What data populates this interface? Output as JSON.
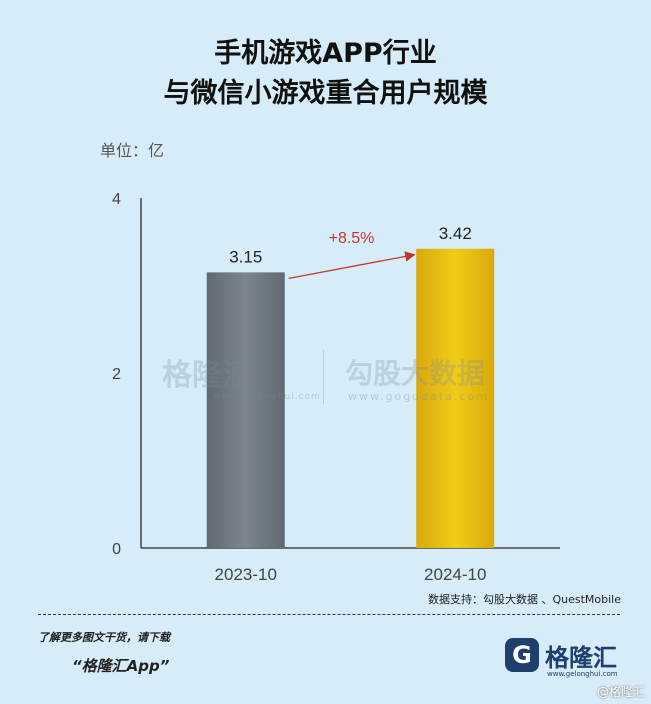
{
  "title_line1": "手机游戏APP行业",
  "title_line2": "与微信小游戏重合用户规模",
  "unit_label": "单位：亿",
  "watermark": {
    "brand": "格隆汇",
    "brand_url": "www.gelonghui.com",
    "partner": "勾股大数据",
    "partner_url": "www.gogudata.com"
  },
  "source": "数据支持：勾股大数据 、QuestMobile",
  "promo_line1": "了解更多图文干货，请下载",
  "promo_line2": "“格隆汇App”",
  "logo": {
    "mark": "G",
    "name": "格隆汇",
    "url": "www.gelonghui.com"
  },
  "corner_mark": "@格隆汇",
  "chart_data": {
    "type": "bar",
    "title": "手机游戏APP行业 与微信小游戏重合用户规模",
    "ylabel": "单位：亿",
    "categories": [
      "2023-10",
      "2024-10"
    ],
    "values": [
      3.15,
      3.42
    ],
    "value_labels": [
      "3.15",
      "3.42"
    ],
    "ylim": [
      0,
      4
    ],
    "yticks": [
      "0",
      "2",
      "4"
    ],
    "bar_colors": [
      "#6e7a83",
      "#e8c010"
    ],
    "annotation": {
      "text": "+8.5%",
      "from": "2023-10",
      "to": "2024-10",
      "color": "#c0392b"
    },
    "grid": false
  }
}
